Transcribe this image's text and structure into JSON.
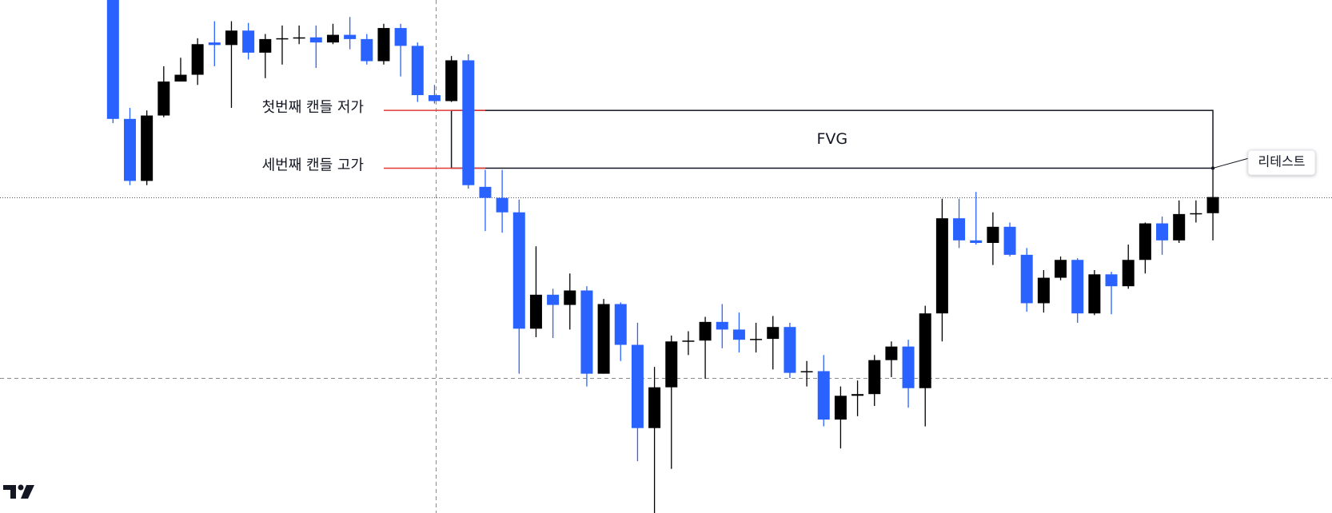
{
  "chart_data": {
    "type": "candlestick",
    "ylim": [
      0,
      604
    ],
    "up_color": "#000000",
    "down_color": "#2962ff",
    "open": [
      604,
      464,
      391,
      468,
      508,
      516,
      554,
      551,
      568,
      542,
      558,
      559,
      560,
      554,
      563,
      558,
      532,
      571,
      550,
      492,
      485,
      533,
      384,
      371,
      354,
      217,
      257,
      245,
      262,
      164,
      246,
      198,
      100,
      148,
      202,
      203,
      225,
      216,
      204,
      205,
      219,
      166,
      167,
      110,
      138,
      140,
      180,
      196,
      147,
      235,
      347,
      321,
      318,
      337,
      304,
      247,
      277,
      298,
      235,
      281,
      267,
      298,
      341,
      321,
      352,
      353
    ],
    "high": [
      604,
      477,
      474,
      526,
      536,
      559,
      579,
      579,
      577,
      564,
      574,
      574,
      574,
      576,
      584,
      564,
      576,
      576,
      554,
      504,
      538,
      540,
      404,
      404,
      369,
      314,
      264,
      282,
      267,
      252,
      248,
      224,
      172,
      209,
      214,
      231,
      246,
      236,
      224,
      232,
      224,
      179,
      186,
      149,
      156,
      186,
      202,
      204,
      244,
      370,
      370,
      378,
      354,
      342,
      312,
      286,
      302,
      300,
      286,
      284,
      316,
      342,
      349,
      368,
      368,
      404
    ],
    "low": [
      459,
      386,
      386,
      466,
      508,
      504,
      526,
      477,
      534,
      512,
      528,
      552,
      524,
      552,
      546,
      528,
      528,
      514,
      484,
      482,
      484,
      382,
      332,
      330,
      164,
      207,
      206,
      216,
      149,
      164,
      179,
      61,
      0,
      52,
      186,
      158,
      194,
      189,
      189,
      169,
      159,
      149,
      102,
      76,
      114,
      126,
      160,
      124,
      102,
      202,
      312,
      316,
      292,
      302,
      237,
      236,
      274,
      224,
      233,
      234,
      264,
      282,
      304,
      318,
      342,
      321
    ],
    "close": [
      464,
      391,
      468,
      508,
      516,
      552,
      551,
      568,
      542,
      558,
      559,
      560,
      554,
      563,
      558,
      532,
      571,
      550,
      492,
      485,
      533,
      386,
      371,
      354,
      217,
      257,
      245,
      262,
      164,
      246,
      198,
      100,
      148,
      202,
      203,
      225,
      216,
      204,
      205,
      219,
      165,
      167,
      110,
      138,
      140,
      180,
      196,
      147,
      235,
      347,
      321,
      318,
      337,
      304,
      247,
      277,
      298,
      235,
      281,
      267,
      298,
      341,
      321,
      352,
      353,
      372
    ],
    "fvg": {
      "label": "FVG",
      "top": 474,
      "bottom": 406
    },
    "first_candle_low_label": "첫번째 캔들 저가",
    "third_candle_high_label": "세번째 캔들 고가",
    "retest_label": "리테스트"
  }
}
